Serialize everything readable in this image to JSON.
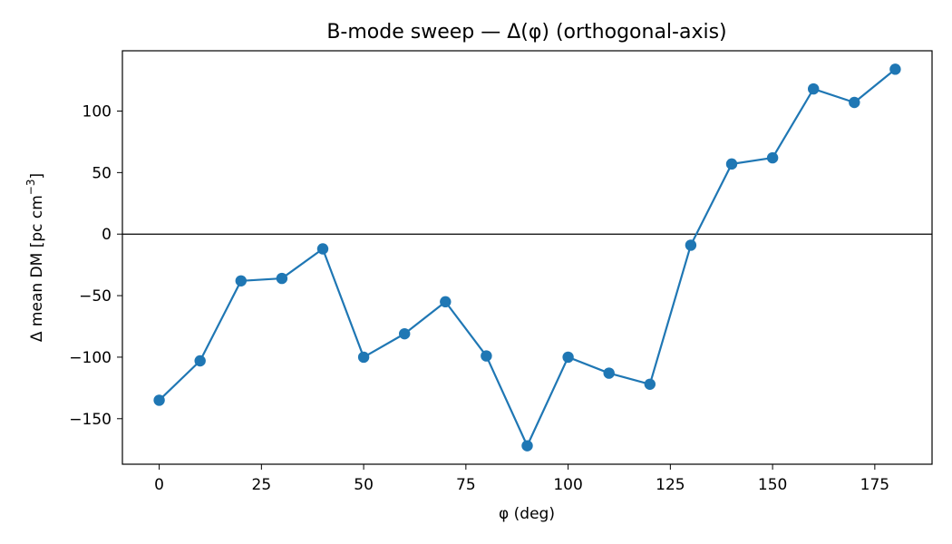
{
  "chart_data": {
    "type": "line",
    "title": "B-mode sweep — Δ(φ) (orthogonal-axis)",
    "xlabel": "φ (deg)",
    "ylabel": "Δ mean DM [pc cm",
    "ylabel_sup": "−3",
    "ylabel_end": "]",
    "xlim": [
      -9,
      189
    ],
    "ylim": [
      -187,
      149
    ],
    "xticks": [
      0,
      25,
      50,
      75,
      100,
      125,
      150,
      175
    ],
    "yticks": [
      -150,
      -100,
      -50,
      0,
      50,
      100
    ],
    "xtick_labels": [
      "0",
      "25",
      "50",
      "75",
      "100",
      "125",
      "150",
      "175"
    ],
    "ytick_labels": [
      "−150",
      "−100",
      "−50",
      "0",
      "50",
      "100"
    ],
    "reference_line_y": 0,
    "grid": false,
    "series": [
      {
        "color": "#1f77b4",
        "marker": "circle",
        "x": [
          0,
          10,
          20,
          30,
          40,
          50,
          60,
          70,
          80,
          90,
          100,
          110,
          120,
          130,
          140,
          150,
          160,
          170,
          180
        ],
        "y": [
          -135,
          -103,
          -38,
          -36,
          -12,
          -100,
          -81,
          -55,
          -99,
          -172,
          -100,
          -113,
          -122,
          -9,
          57,
          62,
          118,
          107,
          134
        ]
      }
    ]
  }
}
